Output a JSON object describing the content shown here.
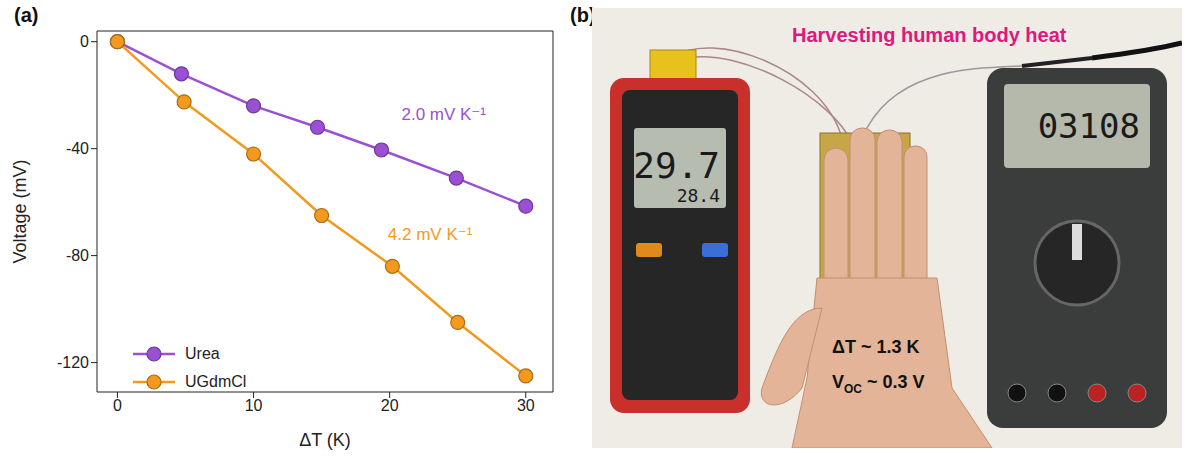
{
  "panel_labels": [
    "(a)",
    "(b)"
  ],
  "chart_data": {
    "type": "line",
    "x_label": "ΔT (K)",
    "y_label": "Voltage (mV)",
    "xlim": [
      -1.5,
      32
    ],
    "xticks": [
      0,
      10,
      20,
      30
    ],
    "ylim": [
      -131,
      4
    ],
    "yticks": [
      0,
      -40,
      -80,
      -120
    ],
    "grid": false,
    "legend": "lower left",
    "series": [
      {
        "name": "Urea",
        "color": "#9b50d4",
        "marker": "o",
        "slope_label": "2.0 mV K⁻¹",
        "x": [
          0,
          4.7,
          10,
          14.7,
          19.4,
          24.9,
          30
        ],
        "values": [
          0,
          -12,
          -24,
          -32,
          -40.5,
          -51,
          -61.5
        ]
      },
      {
        "name": "UGdmCl",
        "color": "#f39a1e",
        "marker": "o",
        "slope_label": "4.2 mV K⁻¹",
        "x": [
          0,
          4.9,
          10,
          15,
          20.2,
          25,
          30
        ],
        "values": [
          0,
          -22.5,
          -42,
          -65,
          -84,
          -105,
          -125
        ]
      }
    ]
  },
  "photo": {
    "title": "Harvesting human body heat",
    "thermometer_readings": [
      "29.7",
      "28.4"
    ],
    "multimeter_reading": "03108",
    "delta_t": "ΔT ~ 1.3 K",
    "voc": {
      "symbol": "V",
      "subscript": "OC",
      "text": " ~ 0.3 V"
    }
  }
}
